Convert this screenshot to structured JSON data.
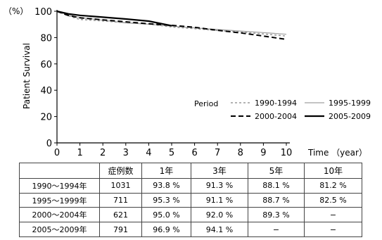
{
  "chart_data": {
    "type": "line",
    "y_unit_label": "（%）",
    "ylabel": "Patient Survival",
    "xlabel": "Time （year）",
    "xlim": [
      0,
      10
    ],
    "ylim": [
      0,
      100
    ],
    "x_ticks": [
      0,
      1,
      2,
      3,
      4,
      5,
      6,
      7,
      8,
      9,
      10
    ],
    "y_ticks": [
      0,
      20,
      40,
      60,
      80,
      100
    ],
    "legend": {
      "title": "Period",
      "placement": "center-right"
    },
    "series": [
      {
        "name": "1990-1994",
        "style": "dotted",
        "color": "#999999",
        "x": [
          0,
          0.5,
          1,
          2,
          3,
          4,
          5,
          6,
          7,
          8,
          9,
          10
        ],
        "y": [
          100,
          96.5,
          93.8,
          92.6,
          91.3,
          90.3,
          88.1,
          86.8,
          85.4,
          84.2,
          82.8,
          81.2
        ]
      },
      {
        "name": "1995-1999",
        "style": "solid-thin",
        "color": "#a0a0a0",
        "x": [
          0,
          0.5,
          1,
          2,
          3,
          4,
          5,
          6,
          7,
          8,
          9,
          10
        ],
        "y": [
          100,
          97.2,
          95.3,
          93.2,
          91.1,
          90.2,
          88.7,
          87.4,
          86.2,
          85.0,
          83.8,
          82.5
        ]
      },
      {
        "name": "2000-2004",
        "style": "dashed",
        "color": "#000000",
        "x": [
          0,
          0.5,
          1,
          2,
          3,
          4,
          5,
          6,
          7,
          8,
          9,
          10
        ],
        "y": [
          100,
          96.8,
          95.0,
          93.5,
          92.0,
          90.5,
          89.3,
          87.8,
          85.5,
          83.6,
          81.2,
          78.6
        ]
      },
      {
        "name": "2005-2009",
        "style": "solid",
        "color": "#000000",
        "x": [
          0,
          0.5,
          1,
          2,
          3,
          4,
          5
        ],
        "y": [
          100,
          98.0,
          96.9,
          95.5,
          94.1,
          92.5,
          89.0
        ]
      }
    ]
  },
  "table": {
    "header": [
      "",
      "症例数",
      "1年",
      "3年",
      "5年",
      "10年"
    ],
    "rows": [
      [
        "1990〜1994年",
        "1031",
        "93.8 %",
        "91.3 %",
        "88.1 %",
        "81.2 %"
      ],
      [
        "1995〜1999年",
        "711",
        "95.3 %",
        "91.1 %",
        "88.7 %",
        "82.5 %"
      ],
      [
        "2000〜2004年",
        "621",
        "95.0 %",
        "92.0 %",
        "89.3 %",
        "−"
      ],
      [
        "2005〜2009年",
        "791",
        "96.9 %",
        "94.1 %",
        "−",
        "−"
      ]
    ]
  }
}
